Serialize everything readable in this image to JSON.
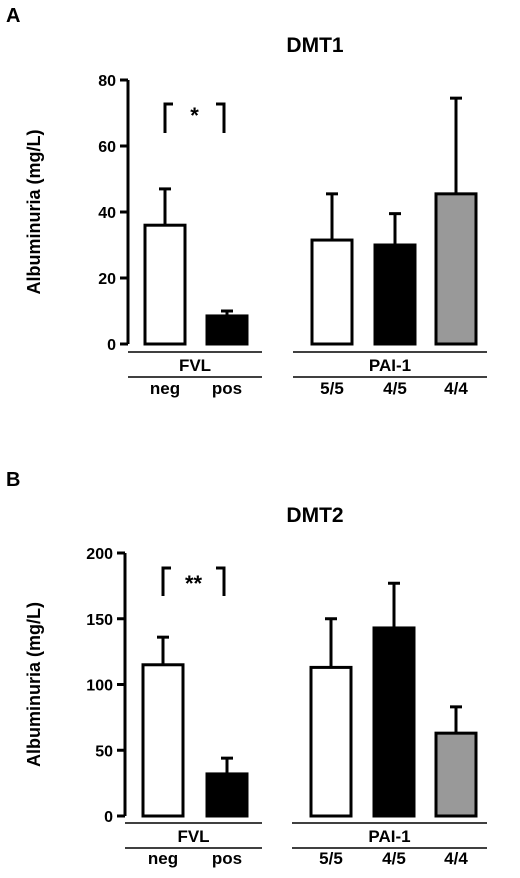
{
  "colors": {
    "white_bar": "#ffffff",
    "black_bar": "#000000",
    "gray_bar": "#999999",
    "axis": "#000000"
  },
  "chart_data": [
    {
      "type": "bar",
      "panel_label": "A",
      "title": "DMT1",
      "ylabel": "Albuminuria (mg/L)",
      "ylim": [
        0,
        80
      ],
      "yticks": [
        "0",
        "20",
        "40",
        "60",
        "80"
      ],
      "categories": [
        "neg",
        "pos",
        "5/5",
        "4/5",
        "4/4"
      ],
      "values": [
        36,
        8.5,
        31.5,
        30,
        45.5
      ],
      "errors": [
        11,
        1.5,
        14,
        9.5,
        29
      ],
      "bar_colors": [
        "white",
        "black",
        "white",
        "black",
        "gray"
      ],
      "groups": [
        {
          "label": "FVL",
          "categories": [
            "neg",
            "pos"
          ]
        },
        {
          "label": "PAI-1",
          "categories": [
            "5/5",
            "4/5",
            "4/4"
          ]
        }
      ],
      "significance": {
        "between": [
          "neg",
          "pos"
        ],
        "label": "*"
      }
    },
    {
      "type": "bar",
      "panel_label": "B",
      "title": "DMT2",
      "ylabel": "Albuminuria (mg/L)",
      "ylim": [
        0,
        200
      ],
      "yticks": [
        "0",
        "50",
        "100",
        "150",
        "200"
      ],
      "categories": [
        "neg",
        "pos",
        "5/5",
        "4/5",
        "4/4"
      ],
      "values": [
        115,
        32,
        113,
        143,
        63
      ],
      "errors": [
        21,
        12,
        37,
        34,
        20
      ],
      "bar_colors": [
        "white",
        "black",
        "white",
        "black",
        "gray"
      ],
      "groups": [
        {
          "label": "FVL",
          "categories": [
            "neg",
            "pos"
          ]
        },
        {
          "label": "PAI-1",
          "categories": [
            "5/5",
            "4/5",
            "4/4"
          ]
        }
      ],
      "significance": {
        "between": [
          "neg",
          "pos"
        ],
        "label": "**"
      }
    }
  ]
}
